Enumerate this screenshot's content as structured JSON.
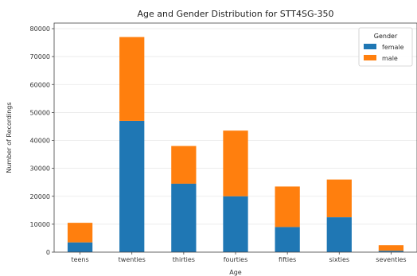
{
  "chart_data": {
    "type": "bar",
    "stacked": true,
    "title": "Age and Gender Distribution for STT4SG-350",
    "xlabel": "Age",
    "ylabel": "Number of Recordings",
    "categories": [
      "teens",
      "twenties",
      "thirties",
      "fourties",
      "fifties",
      "sixties",
      "seventies"
    ],
    "series": [
      {
        "name": "female",
        "color": "#1f77b4",
        "values": [
          3500,
          47000,
          24500,
          20000,
          9000,
          12500,
          500
        ]
      },
      {
        "name": "male",
        "color": "#ff7f0e",
        "values": [
          7000,
          30000,
          13500,
          23500,
          14500,
          13500,
          2000
        ]
      }
    ],
    "ylim": [
      0,
      82000
    ],
    "yticks": [
      0,
      10000,
      20000,
      30000,
      40000,
      50000,
      60000,
      70000,
      80000
    ],
    "grid": true,
    "legend": {
      "title": "Gender",
      "placement": "top-right"
    }
  }
}
